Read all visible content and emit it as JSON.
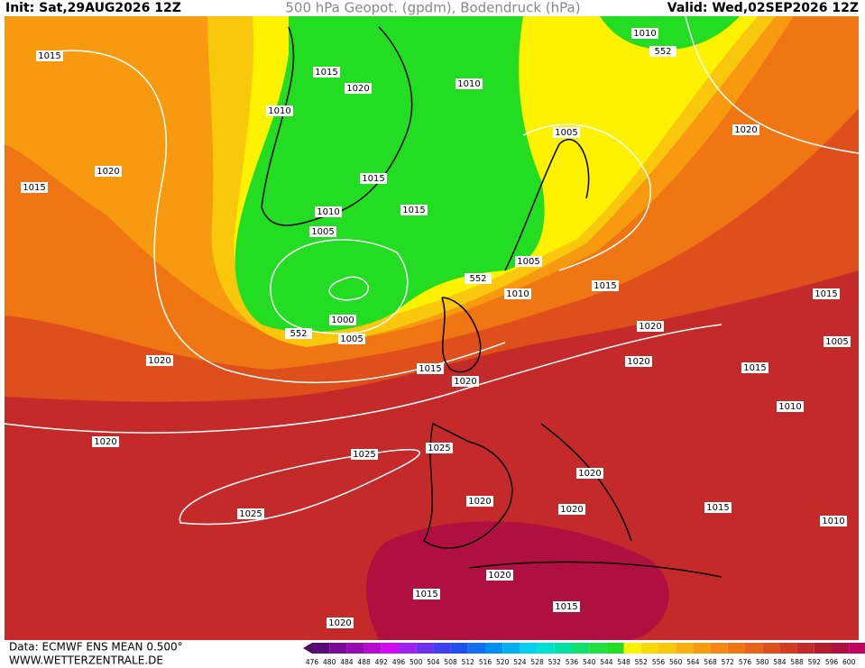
{
  "header": {
    "init": "Init: Sat,29AUG2026 12Z",
    "title": "500 hPa Geopot. (gpdm), Bodendruck (hPa)",
    "valid": "Valid: Wed,02SEP2026 12Z"
  },
  "isobar_labels": [
    1015,
    1015,
    1020,
    1010,
    1010,
    1010,
    552,
    1005,
    1020,
    1020,
    1015,
    1015,
    1015,
    1010,
    1005,
    1005,
    552,
    1010,
    1015,
    1015,
    1000,
    552,
    1005,
    1020,
    1005,
    1020,
    1020,
    1015,
    1015,
    1020,
    1010,
    1020,
    1025,
    1025,
    1020,
    1020,
    1020,
    1025,
    1015,
    1010,
    1020,
    1015,
    1015,
    1020
  ],
  "colorbar": {
    "labels": [
      476,
      480,
      484,
      488,
      492,
      496,
      500,
      504,
      508,
      512,
      516,
      520,
      524,
      528,
      532,
      536,
      540,
      544,
      548,
      552,
      556,
      560,
      564,
      568,
      572,
      576,
      580,
      584,
      588,
      592,
      596,
      600
    ]
  },
  "footer": {
    "source": "Data: ECMWF ENS MEAN 0.500°",
    "website": "WWW.WETTERZENTRALE.DE"
  }
}
